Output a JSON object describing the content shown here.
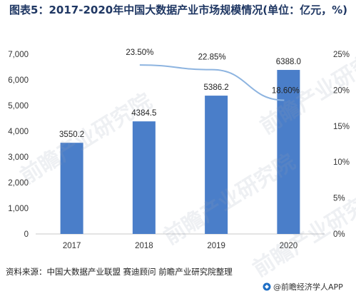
{
  "chart_data": {
    "type": "bar",
    "title": "图表5：2017-2020年中国大数据产业市场规模情况(单位：亿元，%)",
    "categories": [
      "2017",
      "2018",
      "2019",
      "2020"
    ],
    "series": [
      {
        "values": [
          3550.2,
          4384.5,
          5386.2,
          6388.0
        ],
        "value_labels": [
          "3550.2",
          "4384.5",
          "5386.2",
          "6388.0"
        ],
        "color": "#4a7ec9",
        "axis": "left"
      },
      {
        "type": "line",
        "values": [
          null,
          23.5,
          22.85,
          18.6
        ],
        "value_labels": [
          "",
          "23.50%",
          "22.85%",
          "18.60%"
        ],
        "color": "#8db4e0",
        "axis": "right"
      }
    ],
    "y_left": {
      "range": [
        0,
        7000
      ],
      "ticks": [
        "0",
        "1,000",
        "2,000",
        "3,000",
        "4,000",
        "5,000",
        "6,000",
        "7,000"
      ]
    },
    "y_right": {
      "range": [
        0,
        25
      ],
      "ticks": [
        "0%",
        "5%",
        "10%",
        "15%",
        "20%",
        "25%"
      ]
    },
    "grid": false,
    "legend": "none"
  },
  "source": "资料来源：中国大数据产业联盟 赛迪顾问 前瞻产业研究院整理",
  "logo_text": "@前瞻经济学人APP",
  "watermark": "前瞻产业研究院"
}
